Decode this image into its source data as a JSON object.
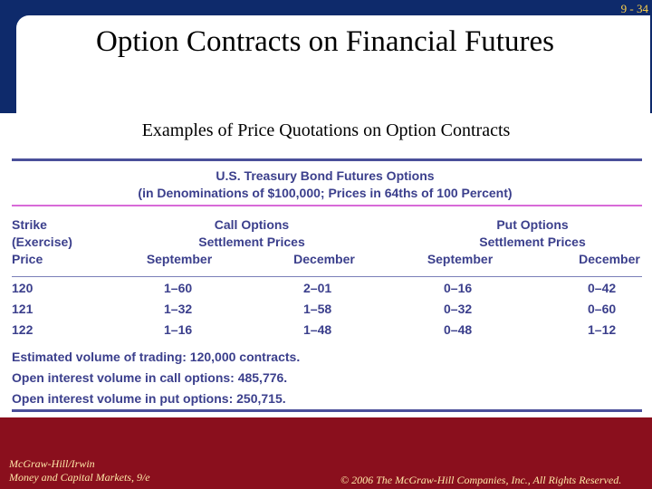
{
  "slide": {
    "number": "9 - 34",
    "title": "Option Contracts on Financial Futures",
    "subtitle": "Examples of Price Quotations on Option Contracts"
  },
  "table": {
    "title_line1": "U.S. Treasury Bond Futures Options",
    "title_line2": "(in Denominations of $100,000; Prices in 64ths of 100 Percent)",
    "strike_header": [
      "Strike",
      "(Exercise)",
      "Price"
    ],
    "call_header": [
      "Call Options",
      "Settlement Prices"
    ],
    "put_header": [
      "Put Options",
      "Settlement Prices"
    ],
    "columns": [
      "September",
      "December",
      "September",
      "December"
    ],
    "rows": [
      [
        "120",
        "1–60",
        "2–01",
        "0–16",
        "0–42"
      ],
      [
        "121",
        "1–32",
        "1–58",
        "0–32",
        "0–60"
      ],
      [
        "122",
        "1–16",
        "1–48",
        "0–48",
        "1–12"
      ]
    ],
    "notes": [
      "Estimated volume of trading: 120,000 contracts.",
      "Open interest volume in call options: 485,776.",
      "Open interest volume in put options: 250,715."
    ]
  },
  "footer": {
    "publisher": "McGraw-Hill/Irwin",
    "book": "Money and Capital Markets, 9/e",
    "copyright": "© 2006 The McGraw-Hill Companies, Inc., All Rights Reserved."
  },
  "colors": {
    "header_blue": "#0e2a6b",
    "footer_red": "#8a0f1d",
    "table_text": "#3b3f8c",
    "accent_rule": "#d86ad8"
  }
}
